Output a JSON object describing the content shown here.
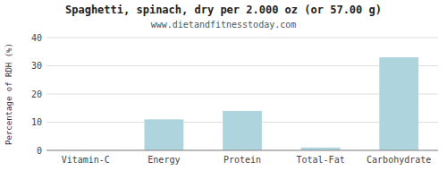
{
  "chart_data": {
    "type": "bar",
    "title": "Spaghetti, spinach, dry per 2.000 oz (or 57.00 g)",
    "subtitle": "www.dietandfitnesstoday.com",
    "categories": [
      "Vitamin-C",
      "Energy",
      "Protein",
      "Total-Fat",
      "Carbohydrate"
    ],
    "values": [
      0,
      11,
      14,
      1,
      33
    ],
    "color": "#aed4de",
    "ylabel": "Percentage of RDH (%)",
    "ylim": [
      0,
      40
    ],
    "yticks": [
      0,
      10,
      20,
      30,
      40
    ],
    "grid": true
  }
}
